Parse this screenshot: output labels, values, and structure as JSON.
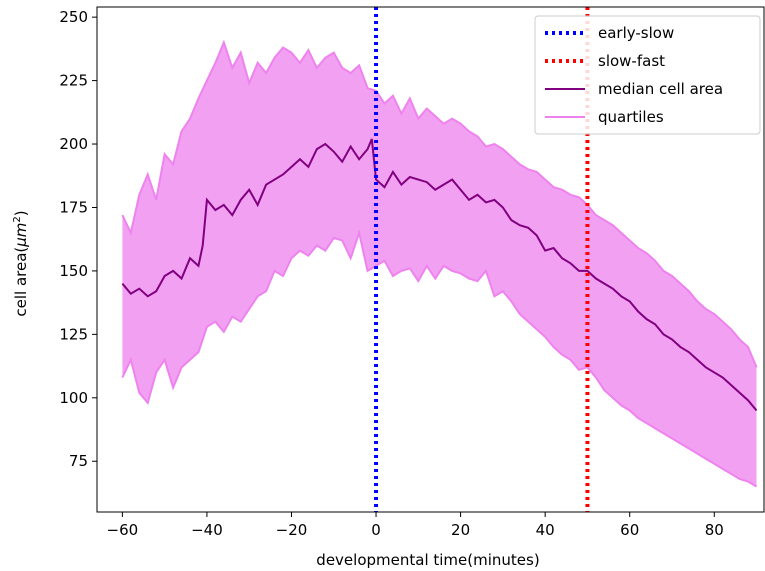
{
  "chart_data": {
    "type": "line",
    "title": "",
    "xlabel": "developmental time(minutes)",
    "ylabel_prefix": "cell area(",
    "ylabel_unit_base": "μm",
    "ylabel_unit_exp": "2",
    "ylabel_suffix": ")",
    "xlim": [
      -66,
      92
    ],
    "ylim": [
      55,
      254
    ],
    "xticks": [
      -60,
      -40,
      -20,
      0,
      20,
      40,
      60,
      80
    ],
    "xtick_labels": [
      "−60",
      "−40",
      "−20",
      "0",
      "20",
      "40",
      "60",
      "80"
    ],
    "yticks": [
      75,
      100,
      125,
      150,
      175,
      200,
      225,
      250
    ],
    "ytick_labels": [
      "75",
      "100",
      "125",
      "150",
      "175",
      "200",
      "225",
      "250"
    ],
    "grid": false,
    "legend_position": "top-right",
    "vlines": [
      {
        "name": "early-slow",
        "x": 0,
        "color": "#0000ff",
        "style": "dotted"
      },
      {
        "name": "slow-fast",
        "x": 50,
        "color": "#ff0000",
        "style": "dotted"
      }
    ],
    "median": {
      "name": "median cell area",
      "color": "#800080",
      "x": [
        -60,
        -58,
        -56,
        -54,
        -52,
        -50,
        -48,
        -46,
        -44,
        -42,
        -41,
        -40,
        -38,
        -36,
        -34,
        -32,
        -30,
        -28,
        -26,
        -24,
        -22,
        -20,
        -18,
        -16,
        -14,
        -12,
        -10,
        -8,
        -6,
        -4,
        -2,
        -1,
        0,
        2,
        4,
        6,
        8,
        10,
        12,
        14,
        16,
        18,
        20,
        22,
        24,
        26,
        28,
        30,
        32,
        34,
        36,
        38,
        40,
        42,
        44,
        46,
        48,
        50,
        52,
        54,
        56,
        58,
        60,
        62,
        64,
        66,
        68,
        70,
        72,
        74,
        76,
        78,
        80,
        82,
        84,
        86,
        88,
        90
      ],
      "values": [
        145,
        141,
        143,
        140,
        142,
        148,
        150,
        147,
        155,
        152,
        160,
        178,
        174,
        176,
        172,
        178,
        182,
        176,
        184,
        186,
        188,
        191,
        194,
        191,
        198,
        200,
        197,
        193,
        199,
        194,
        198,
        202,
        186,
        183,
        189,
        184,
        187,
        186,
        185,
        182,
        184,
        186,
        182,
        178,
        180,
        177,
        178,
        175,
        170,
        168,
        167,
        164,
        158,
        159,
        155,
        153,
        150,
        150,
        147,
        145,
        143,
        140,
        138,
        134,
        131,
        129,
        125,
        123,
        120,
        118,
        115,
        112,
        110,
        108,
        105,
        102,
        99,
        95
      ]
    },
    "quartiles": {
      "name": "quartiles",
      "color": "#ee82ee",
      "x": [
        -60,
        -58,
        -56,
        -54,
        -52,
        -50,
        -48,
        -46,
        -44,
        -42,
        -40,
        -38,
        -36,
        -34,
        -32,
        -30,
        -28,
        -26,
        -24,
        -22,
        -20,
        -18,
        -16,
        -14,
        -12,
        -10,
        -8,
        -6,
        -4,
        -2,
        0,
        2,
        4,
        6,
        8,
        10,
        12,
        14,
        16,
        18,
        20,
        22,
        24,
        26,
        28,
        30,
        32,
        34,
        36,
        38,
        40,
        42,
        44,
        46,
        48,
        50,
        52,
        54,
        56,
        58,
        60,
        62,
        64,
        66,
        68,
        70,
        72,
        74,
        76,
        78,
        80,
        82,
        84,
        86,
        88,
        90
      ],
      "upper": [
        172,
        165,
        180,
        188,
        178,
        196,
        192,
        205,
        210,
        218,
        225,
        232,
        240,
        230,
        236,
        224,
        232,
        228,
        234,
        238,
        236,
        232,
        237,
        230,
        234,
        236,
        230,
        228,
        231,
        222,
        221,
        216,
        219,
        212,
        218,
        210,
        214,
        211,
        208,
        210,
        208,
        205,
        203,
        199,
        200,
        198,
        195,
        192,
        190,
        189,
        186,
        183,
        182,
        180,
        179,
        176,
        172,
        170,
        168,
        165,
        162,
        159,
        157,
        154,
        150,
        148,
        145,
        142,
        138,
        135,
        133,
        130,
        127,
        123,
        120,
        112
      ],
      "lower": [
        108,
        115,
        102,
        98,
        110,
        115,
        104,
        112,
        115,
        118,
        128,
        130,
        126,
        132,
        130,
        135,
        140,
        142,
        150,
        148,
        155,
        158,
        156,
        160,
        158,
        163,
        162,
        155,
        165,
        150,
        152,
        154,
        148,
        150,
        151,
        146,
        152,
        147,
        152,
        150,
        149,
        147,
        146,
        150,
        140,
        142,
        138,
        133,
        130,
        127,
        124,
        120,
        117,
        115,
        111,
        112,
        108,
        103,
        100,
        97,
        95,
        92,
        90,
        88,
        86,
        84,
        82,
        80,
        78,
        76,
        74,
        72,
        70,
        68,
        67,
        65
      ]
    }
  }
}
